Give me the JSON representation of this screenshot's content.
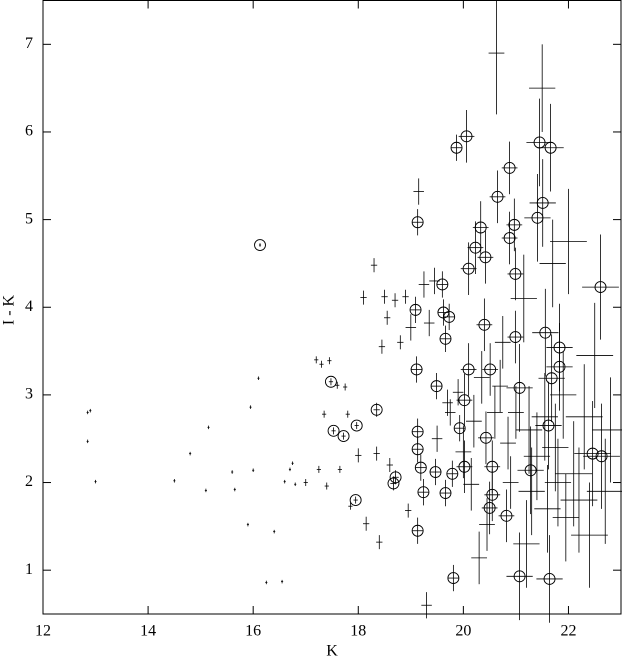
{
  "chart_data": {
    "type": "scatter",
    "xlabel": "K",
    "ylabel": "I - K",
    "xlim": [
      12,
      23
    ],
    "ylim": [
      0.5,
      7.5
    ],
    "xticks": [
      12,
      14,
      16,
      18,
      20,
      22
    ],
    "yticks": [
      1,
      2,
      3,
      4,
      5,
      6,
      7
    ],
    "series": [
      {
        "marker": "cross",
        "color": "#000000",
        "x": [
          12.85,
          12.9,
          12.85,
          13.0,
          14.5,
          14.8,
          15.1,
          15.15,
          15.6,
          15.65,
          15.9,
          15.95,
          16.0,
          16.1,
          16.25,
          16.4,
          16.55,
          16.6,
          16.7,
          16.75,
          16.8,
          17.0,
          17.2,
          17.25,
          17.3,
          17.35,
          17.4,
          17.45,
          17.6,
          17.8,
          17.65,
          17.75,
          17.85,
          18.0,
          18.1,
          18.15,
          18.3,
          18.35,
          18.4,
          18.45,
          18.5,
          18.55,
          18.6,
          18.7,
          18.8,
          18.9,
          19.0,
          18.95,
          19.15,
          19.25,
          19.35,
          19.3,
          19.45,
          19.5,
          19.7,
          19.75,
          19.9,
          20.0,
          20.15,
          20.2,
          20.3,
          20.35,
          20.45,
          20.6,
          20.7,
          20.75,
          20.85,
          20.9,
          21.0,
          21.15,
          21.2,
          21.25,
          21.3,
          21.4,
          21.5,
          21.55,
          21.6,
          21.7,
          21.75,
          21.8,
          21.9,
          21.95,
          22.0,
          22.1,
          22.2,
          22.3,
          22.4,
          22.5,
          22.7,
          22.8,
          20.63
        ],
        "y": [
          2.8,
          2.82,
          2.47,
          2.01,
          2.02,
          2.33,
          1.91,
          2.63,
          2.12,
          1.92,
          1.52,
          2.86,
          2.14,
          3.19,
          0.86,
          1.44,
          0.87,
          2.01,
          2.15,
          2.22,
          1.98,
          2.0,
          3.4,
          2.15,
          3.35,
          2.78,
          1.96,
          3.39,
          3.11,
          2.78,
          2.15,
          3.09,
          1.73,
          2.31,
          4.11,
          1.53,
          4.48,
          2.33,
          1.32,
          3.55,
          4.12,
          3.88,
          2.2,
          4.08,
          3.6,
          4.12,
          3.77,
          1.68,
          5.32,
          4.26,
          3.82,
          0.6,
          4.3,
          2.5,
          2.91,
          2.8,
          3.03,
          2.35,
          1.98,
          2.7,
          1.14,
          3.2,
          1.52,
          2.8,
          3.1,
          3.6,
          2.45,
          2.0,
          2.8,
          4.1,
          1.3,
          2.6,
          1.9,
          2.3,
          6.5,
          2.75,
          1.7,
          4.5,
          2.4,
          2.0,
          3.0,
          1.6,
          4.75,
          2.1,
          1.8,
          2.75,
          1.4,
          3.45,
          1.9,
          2.6,
          6.9
        ],
        "xerr": [
          0.02,
          0.02,
          0.02,
          0.02,
          0.02,
          0.02,
          0.02,
          0.02,
          0.02,
          0.02,
          0.02,
          0.02,
          0.02,
          0.02,
          0.02,
          0.02,
          0.02,
          0.02,
          0.02,
          0.02,
          0.02,
          0.04,
          0.04,
          0.04,
          0.04,
          0.04,
          0.04,
          0.04,
          0.04,
          0.04,
          0.04,
          0.04,
          0.04,
          0.06,
          0.06,
          0.06,
          0.06,
          0.06,
          0.06,
          0.06,
          0.06,
          0.06,
          0.06,
          0.06,
          0.06,
          0.06,
          0.1,
          0.06,
          0.1,
          0.1,
          0.1,
          0.1,
          0.1,
          0.1,
          0.1,
          0.1,
          0.1,
          0.15,
          0.15,
          0.15,
          0.15,
          0.15,
          0.15,
          0.15,
          0.15,
          0.15,
          0.15,
          0.15,
          0.15,
          0.25,
          0.25,
          0.25,
          0.25,
          0.25,
          0.25,
          0.25,
          0.25,
          0.25,
          0.25,
          0.25,
          0.25,
          0.25,
          0.35,
          0.35,
          0.35,
          0.35,
          0.35,
          0.35,
          0.35,
          0.35,
          0.15
        ],
        "yerr": [
          0.02,
          0.02,
          0.02,
          0.02,
          0.02,
          0.02,
          0.02,
          0.02,
          0.02,
          0.02,
          0.02,
          0.02,
          0.02,
          0.02,
          0.02,
          0.02,
          0.02,
          0.02,
          0.02,
          0.02,
          0.02,
          0.04,
          0.04,
          0.04,
          0.04,
          0.04,
          0.04,
          0.04,
          0.04,
          0.04,
          0.04,
          0.04,
          0.04,
          0.08,
          0.08,
          0.08,
          0.08,
          0.08,
          0.08,
          0.08,
          0.08,
          0.08,
          0.08,
          0.08,
          0.08,
          0.08,
          0.15,
          0.08,
          0.15,
          0.15,
          0.15,
          0.15,
          0.15,
          0.15,
          0.15,
          0.15,
          0.15,
          0.3,
          0.3,
          0.3,
          0.3,
          0.3,
          0.3,
          0.3,
          0.3,
          0.3,
          0.3,
          0.3,
          0.3,
          0.5,
          0.5,
          0.5,
          0.5,
          0.5,
          0.5,
          0.5,
          0.5,
          0.5,
          0.5,
          0.5,
          0.5,
          0.5,
          0.6,
          0.6,
          0.6,
          0.6,
          0.6,
          0.6,
          0.6,
          0.6,
          0.7
        ]
      },
      {
        "marker": "circle",
        "color": "#000000",
        "x": [
          16.13,
          17.48,
          17.53,
          17.72,
          17.97,
          17.95,
          18.35,
          18.67,
          18.71,
          19.13,
          19.09,
          19.11,
          19.13,
          19.13,
          19.13,
          19.24,
          19.19,
          19.49,
          19.47,
          19.6,
          19.62,
          19.66,
          19.73,
          19.79,
          19.81,
          19.87,
          19.93,
          20.02,
          20.02,
          20.06,
          20.1,
          20.1,
          19.66,
          20.23,
          20.33,
          20.42,
          20.4,
          20.51,
          20.43,
          20.55,
          20.65,
          20.55,
          20.5,
          20.82,
          20.88,
          20.88,
          20.97,
          20.99,
          20.99,
          21.07,
          21.07,
          21.45,
          21.51,
          21.56,
          21.66,
          21.68,
          21.64,
          21.83,
          21.83,
          22.61,
          22.46,
          22.63,
          21.62,
          21.28,
          21.41
        ],
        "y": [
          4.71,
          3.15,
          2.59,
          2.53,
          2.65,
          1.8,
          2.83,
          1.99,
          2.06,
          4.97,
          3.97,
          3.29,
          2.58,
          2.38,
          1.45,
          1.89,
          2.17,
          3.1,
          2.12,
          4.26,
          3.94,
          3.64,
          3.89,
          2.1,
          0.91,
          5.82,
          2.62,
          2.18,
          2.94,
          5.95,
          4.44,
          3.29,
          1.88,
          4.68,
          4.91,
          4.57,
          3.8,
          3.29,
          2.51,
          1.86,
          5.26,
          2.18,
          1.71,
          1.62,
          5.59,
          4.79,
          4.94,
          4.38,
          3.66,
          0.93,
          3.08,
          5.88,
          5.19,
          3.71,
          5.82,
          3.19,
          0.9,
          3.54,
          3.32,
          4.23,
          2.33,
          2.3,
          2.65,
          2.14,
          5.02
        ],
        "xerr": [
          0.02,
          0.04,
          0.04,
          0.04,
          0.04,
          0.04,
          0.06,
          0.06,
          0.06,
          0.1,
          0.1,
          0.1,
          0.1,
          0.1,
          0.1,
          0.1,
          0.1,
          0.1,
          0.1,
          0.1,
          0.1,
          0.1,
          0.1,
          0.1,
          0.1,
          0.1,
          0.1,
          0.15,
          0.15,
          0.15,
          0.15,
          0.15,
          0.1,
          0.15,
          0.15,
          0.15,
          0.15,
          0.15,
          0.15,
          0.15,
          0.15,
          0.15,
          0.15,
          0.15,
          0.15,
          0.15,
          0.15,
          0.15,
          0.15,
          0.25,
          0.25,
          0.25,
          0.25,
          0.25,
          0.25,
          0.25,
          0.25,
          0.25,
          0.25,
          0.35,
          0.35,
          0.35,
          0.25,
          0.25,
          0.25
        ],
        "yerr": [
          0.02,
          0.04,
          0.04,
          0.04,
          0.04,
          0.04,
          0.08,
          0.08,
          0.08,
          0.15,
          0.15,
          0.15,
          0.15,
          0.15,
          0.15,
          0.15,
          0.15,
          0.15,
          0.15,
          0.15,
          0.15,
          0.15,
          0.15,
          0.15,
          0.15,
          0.15,
          0.15,
          0.3,
          0.3,
          0.3,
          0.3,
          0.3,
          0.15,
          0.3,
          0.3,
          0.3,
          0.3,
          0.3,
          0.3,
          0.3,
          0.3,
          0.3,
          0.3,
          0.3,
          0.3,
          0.3,
          0.3,
          0.3,
          0.3,
          0.5,
          0.5,
          0.5,
          0.5,
          0.5,
          0.5,
          0.5,
          0.5,
          0.5,
          0.5,
          0.6,
          0.6,
          0.6,
          0.5,
          0.5,
          0.5
        ]
      }
    ]
  }
}
